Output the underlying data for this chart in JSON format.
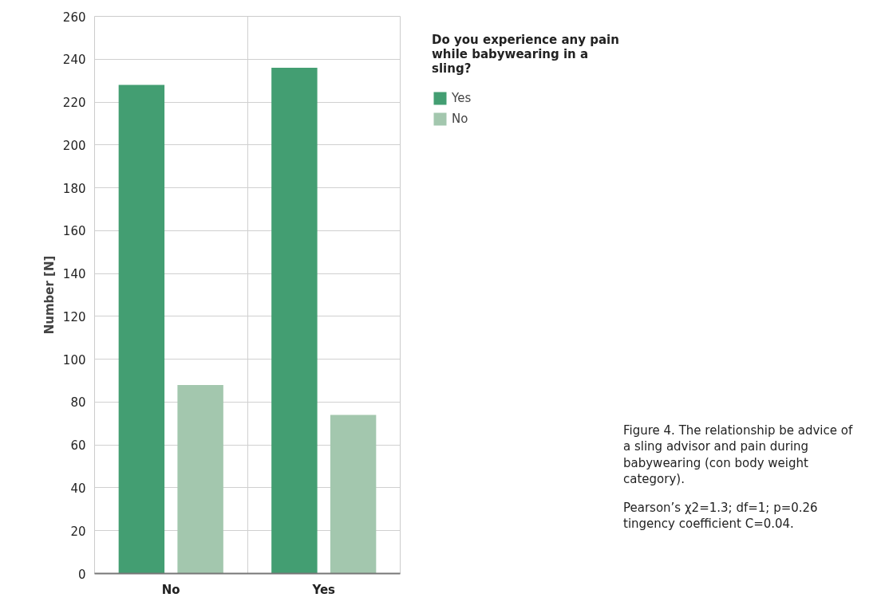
{
  "chart_data": {
    "type": "bar",
    "legend_title": "Do you experience any pain while babywearing in a sling?",
    "ylabel": "Number [N]",
    "categories": [
      "No",
      "Yes"
    ],
    "series": [
      {
        "name": "Yes",
        "color": "#439e72",
        "values": [
          228,
          236
        ]
      },
      {
        "name": "No",
        "color": "#a3c7ae",
        "values": [
          88,
          74
        ]
      }
    ],
    "ylim": [
      0,
      260
    ],
    "yticks": [
      0,
      20,
      40,
      60,
      80,
      100,
      120,
      140,
      160,
      180,
      200,
      220,
      240,
      260
    ],
    "grid": true,
    "legend": "right",
    "annotations": [
      "Figure 4. The relationship be advice of a sling advisor and pain during babywearing (con body weight category).",
      "Pearson’s χ2=1.3; df=1; p=0.26 tingency coefficient C=0.04."
    ]
  }
}
